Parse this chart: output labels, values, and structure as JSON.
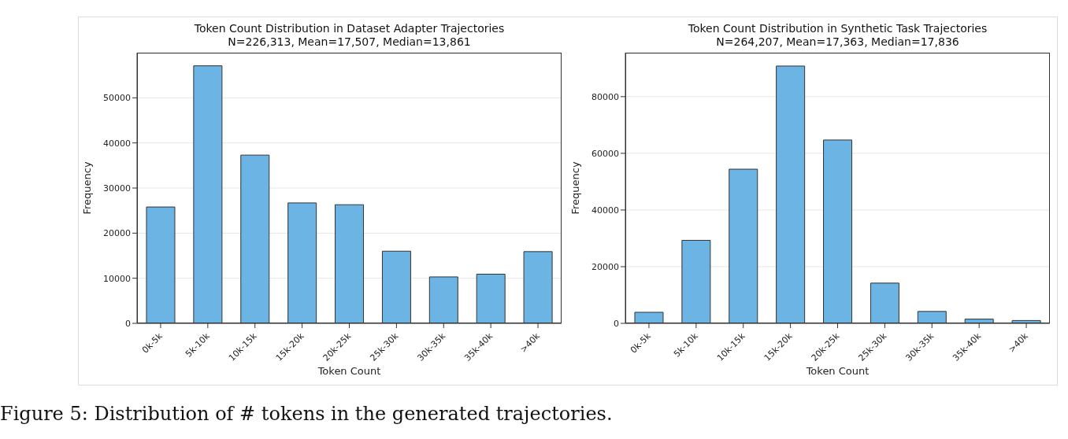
{
  "chart_data": [
    {
      "type": "bar",
      "title": "Token Count Distribution in Dataset Adapter Trajectories",
      "subtitle": "N=226,313, Mean=17,507, Median=13,861",
      "xlabel": "Token Count",
      "ylabel": "Frequency",
      "categories": [
        "0k-5k",
        "5k-10k",
        "10k-15k",
        "15k-20k",
        "20k-25k",
        "25k-30k",
        "30k-35k",
        "35k-40k",
        ">40k"
      ],
      "values": [
        25800,
        57100,
        37300,
        26700,
        26300,
        16000,
        10300,
        10900,
        15900
      ],
      "color": "#6cb4e4",
      "ylim": [
        0,
        60000
      ],
      "yticks": [
        0,
        10000,
        20000,
        30000,
        40000,
        50000
      ],
      "grid": "y",
      "annotations": [
        "Figure 5: Distribution of # tokens in the generated trajectories."
      ]
    },
    {
      "type": "bar",
      "title": "Token Count Distribution in Synthetic Task Trajectories",
      "subtitle": "N=264,207, Mean=17,363, Median=17,836",
      "xlabel": "Token Count",
      "ylabel": "Frequency",
      "categories": [
        "0k-5k",
        "5k-10k",
        "10k-15k",
        "15k-20k",
        "20k-25k",
        "25k-30k",
        "30k-35k",
        "35k-40k",
        ">40k"
      ],
      "values": [
        3900,
        29300,
        54400,
        90800,
        64700,
        14200,
        4200,
        1500,
        1000
      ],
      "color": "#6cb4e4",
      "ylim": [
        0,
        95500
      ],
      "yticks": [
        0,
        20000,
        40000,
        60000,
        80000
      ],
      "grid": "y"
    }
  ]
}
